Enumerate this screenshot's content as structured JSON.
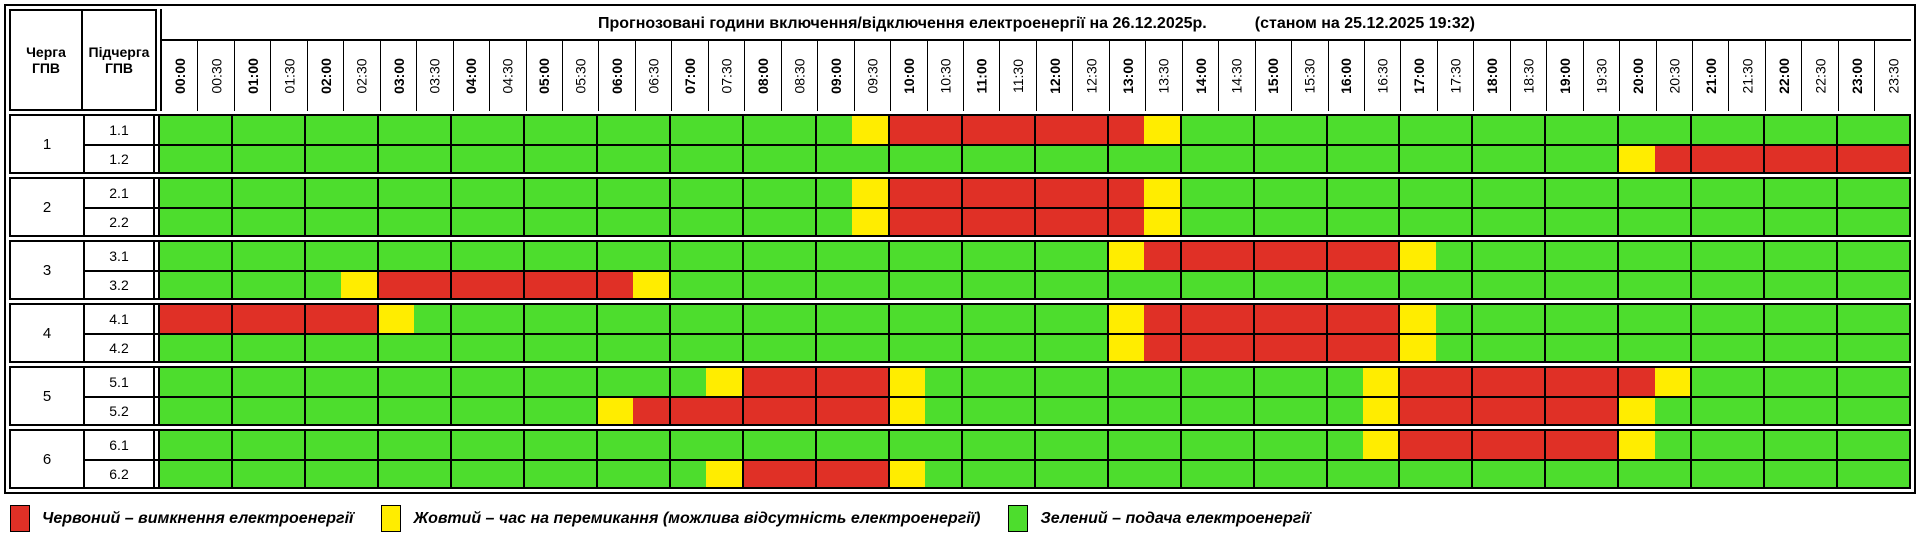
{
  "title": {
    "main": "Прогнозовані години включення/відключення електроенергії на 26.12.2025р.",
    "status": "(станом на 25.12.2025 19:32)"
  },
  "corner": {
    "queue_header": "Черга ГПВ",
    "subqueue_header": "Підчерга ГПВ"
  },
  "colors": {
    "green": "#4ddd2d",
    "yellow": "#ffed00",
    "red": "#e03026"
  },
  "chart_data": {
    "type": "heatmap",
    "title": "Прогнозовані години включення/відключення електроенергії на 26.12.2025р.",
    "status": "(станом на 25.12.2025 19:32)",
    "x_labels": [
      "00:00",
      "00:30",
      "01:00",
      "01:30",
      "02:00",
      "02:30",
      "03:00",
      "03:30",
      "04:00",
      "04:30",
      "05:00",
      "05:30",
      "06:00",
      "06:30",
      "07:00",
      "07:30",
      "08:00",
      "08:30",
      "09:00",
      "09:30",
      "10:00",
      "10:30",
      "11:00",
      "11:30",
      "12:00",
      "12:30",
      "13:00",
      "13:30",
      "14:00",
      "14:30",
      "15:00",
      "15:30",
      "16:00",
      "16:30",
      "17:00",
      "17:30",
      "18:00",
      "18:30",
      "19:00",
      "19:30",
      "20:00",
      "20:30",
      "21:00",
      "21:30",
      "22:00",
      "22:30",
      "23:00",
      "23:30"
    ],
    "state_colors": {
      "G": "#4ddd2d",
      "Y": "#ffed00",
      "R": "#e03026"
    },
    "state_meanings": {
      "R": "вимкнення електроенергії",
      "Y": "час на перемикання (можлива відсутність електроенергії)",
      "G": "подача електроенергії"
    },
    "row_groups": [
      {
        "queue": "1",
        "rows": [
          {
            "label": "1.1",
            "states": "GGGGGGGGGGGGGGGGGGGYRRRRRRRYGGGGGGGGGGGGGGGGGGGG"
          },
          {
            "label": "1.2",
            "states": "GGGGGGGGGGGGGGGGGGGGGGGGGGGGGGGGGGGGGGGGYRRRRRRR"
          }
        ]
      },
      {
        "queue": "2",
        "rows": [
          {
            "label": "2.1",
            "states": "GGGGGGGGGGGGGGGGGGGYRRRRRRRYGGGGGGGGGGGGGGGGGGGG"
          },
          {
            "label": "2.2",
            "states": "GGGGGGGGGGGGGGGGGGGYRRRRRRRYGGGGGGGGGGGGGGGGGGGG"
          }
        ]
      },
      {
        "queue": "3",
        "rows": [
          {
            "label": "3.1",
            "states": "GGGGGGGGGGGGGGGGGGGGGGGGGGYRRRRRRRYGGGGGGGGGGGGG"
          },
          {
            "label": "3.2",
            "states": "GGGGGYRRRRRRRYGGGGGGGGGGGGGGGGGGGGGGGGGGGGGGGGGG"
          }
        ]
      },
      {
        "queue": "4",
        "rows": [
          {
            "label": "4.1",
            "states": "RRRRRRYGGGGGGGGGGGGGGGGGGGYRRRRRRRYGGGGGGGGGGGGG"
          },
          {
            "label": "4.2",
            "states": "GGGGGGGGGGGGGGGGGGGGGGGGGGYRRRRRRRYGGGGGGGGGGGGG"
          }
        ]
      },
      {
        "queue": "5",
        "rows": [
          {
            "label": "5.1",
            "states": "GGGGGGGGGGGGGGGYRRRRYGGGGGGGGGGGGYRRRRRRRYGGGGGG"
          },
          {
            "label": "5.2",
            "states": "GGGGGGGGGGGGYRRRRRRRYGGGGGGGGGGGGYRRRRRRYGGGGGGG"
          }
        ]
      },
      {
        "queue": "6",
        "rows": [
          {
            "label": "6.1",
            "states": "GGGGGGGGGGGGGGGGGGGGGGGGGGGGGGGGGYRRRRRRYGGGGGGG"
          },
          {
            "label": "6.2",
            "states": "GGGGGGGGGGGGGGGYRRRRYGGGGGGGGGGGGGGGGGGGGGGGGGGG"
          }
        ]
      }
    ]
  },
  "legend": [
    {
      "state": "R",
      "text": "Червоний – вимкнення електроенергії"
    },
    {
      "state": "Y",
      "text": "Жовтий – час на перемикання (можлива відсутність електроенергії)"
    },
    {
      "state": "G",
      "text": "Зелений – подача електроенергії"
    }
  ]
}
